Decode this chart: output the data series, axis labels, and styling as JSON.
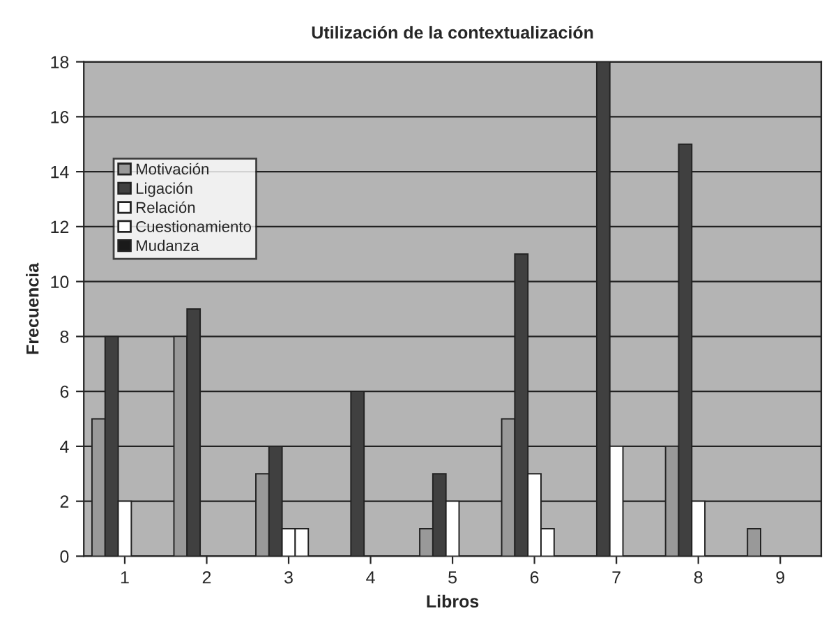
{
  "chart_data": {
    "type": "bar",
    "title": "Utilización de la contextualización",
    "xlabel": "Libros",
    "ylabel": "Frecuencia",
    "categories": [
      "1",
      "2",
      "3",
      "4",
      "5",
      "6",
      "7",
      "8",
      "9"
    ],
    "series": [
      {
        "name": "Motivación",
        "color": "#999999",
        "values": [
          5,
          8,
          3,
          0,
          1,
          5,
          0,
          4,
          1
        ]
      },
      {
        "name": "Ligación",
        "color": "#404040",
        "values": [
          8,
          9,
          4,
          6,
          3,
          11,
          18,
          15,
          0
        ]
      },
      {
        "name": "Relación",
        "color": "#ffffff",
        "values": [
          2,
          0,
          1,
          0,
          2,
          3,
          4,
          2,
          0
        ]
      },
      {
        "name": "Cuestionamiento",
        "color": "#ffffff",
        "values": [
          0,
          0,
          1,
          0,
          0,
          1,
          0,
          0,
          0
        ]
      },
      {
        "name": "Mudanza",
        "color": "#1a1a1a",
        "values": [
          0,
          0,
          0,
          0,
          0,
          0,
          0,
          0,
          0
        ]
      }
    ],
    "ylim": [
      0,
      18
    ],
    "yticks": [
      0,
      2,
      4,
      6,
      8,
      10,
      12,
      14,
      16,
      18
    ],
    "grid": "y",
    "legend": "top left"
  }
}
